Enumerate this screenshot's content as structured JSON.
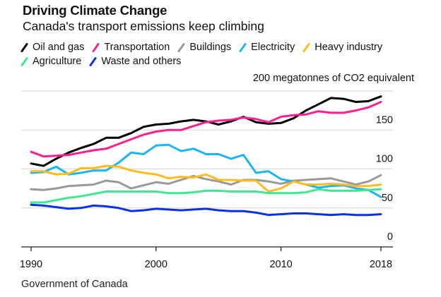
{
  "header": {
    "title": "Driving Climate Change",
    "subtitle": "Canada's transport emissions keep climbing"
  },
  "source": "Government of Canada",
  "chart_data": {
    "type": "line",
    "title": "Driving Climate Change",
    "subtitle": "Canada's transport emissions keep climbing",
    "xlabel": "",
    "ylabel": "megatonnes of CO2 equivalent",
    "unit_label": "200 megatonnes of CO2 equivalent",
    "x": [
      1990,
      1991,
      1992,
      1993,
      1994,
      1995,
      1996,
      1997,
      1998,
      1999,
      2000,
      2001,
      2002,
      2003,
      2004,
      2005,
      2006,
      2007,
      2008,
      2009,
      2010,
      2011,
      2012,
      2013,
      2014,
      2015,
      2016,
      2017,
      2018
    ],
    "xticks": [
      1990,
      2000,
      2010,
      2018
    ],
    "xtick_labels": [
      "1990",
      "2000",
      "2010",
      "2018"
    ],
    "xlim": [
      1990,
      2018
    ],
    "ylim": [
      0,
      200
    ],
    "yticks": [
      0,
      50,
      100,
      150,
      200
    ],
    "ytick_labels": [
      "0",
      "50",
      "100",
      "150",
      ""
    ],
    "grid": true,
    "y_axis_side": "right",
    "legend_position": "top",
    "series": [
      {
        "name": "Oil and gas",
        "color": "#000000",
        "values": [
          107,
          104,
          113,
          121,
          127,
          132,
          140,
          140,
          146,
          154,
          157,
          158,
          161,
          163,
          161,
          157,
          161,
          167,
          160,
          158,
          159,
          165,
          175,
          183,
          191,
          190,
          186,
          187,
          193
        ]
      },
      {
        "name": "Transportation",
        "color": "#ff1f8e",
        "values": [
          122,
          116,
          117,
          118,
          121,
          124,
          126,
          132,
          138,
          144,
          148,
          150,
          150,
          155,
          160,
          162,
          163,
          166,
          164,
          160,
          167,
          169,
          170,
          174,
          172,
          172,
          175,
          179,
          186
        ]
      },
      {
        "name": "Buildings",
        "color": "#999999",
        "values": [
          74,
          73,
          75,
          78,
          79,
          80,
          85,
          83,
          75,
          79,
          83,
          81,
          86,
          91,
          87,
          84,
          80,
          86,
          86,
          84,
          81,
          85,
          86,
          87,
          88,
          84,
          80,
          84,
          92
        ]
      },
      {
        "name": "Electricity",
        "color": "#1bb4f5",
        "values": [
          95,
          96,
          103,
          93,
          95,
          98,
          98,
          108,
          121,
          119,
          130,
          131,
          123,
          126,
          119,
          119,
          113,
          118,
          95,
          97,
          87,
          84,
          80,
          76,
          78,
          79,
          75,
          73,
          64
        ]
      },
      {
        "name": "Heavy industry",
        "color": "#ffbb1c",
        "values": [
          97,
          97,
          93,
          94,
          101,
          101,
          104,
          103,
          98,
          95,
          93,
          88,
          90,
          89,
          93,
          86,
          86,
          85,
          85,
          71,
          75,
          84,
          80,
          80,
          81,
          80,
          78,
          78,
          80
        ]
      },
      {
        "name": "Agriculture",
        "color": "#3ee88f",
        "values": [
          57,
          57,
          60,
          63,
          65,
          68,
          71,
          71,
          71,
          71,
          71,
          69,
          69,
          70,
          72,
          72,
          71,
          71,
          71,
          69,
          69,
          69,
          70,
          74,
          72,
          72,
          72,
          73,
          74
        ]
      },
      {
        "name": "Waste and others",
        "color": "#0a2ff2",
        "values": [
          54,
          53,
          51,
          49,
          50,
          53,
          52,
          50,
          46,
          47,
          49,
          48,
          47,
          48,
          49,
          47,
          46,
          46,
          44,
          41,
          42,
          43,
          43,
          42,
          41,
          42,
          41,
          41,
          42
        ]
      }
    ]
  }
}
